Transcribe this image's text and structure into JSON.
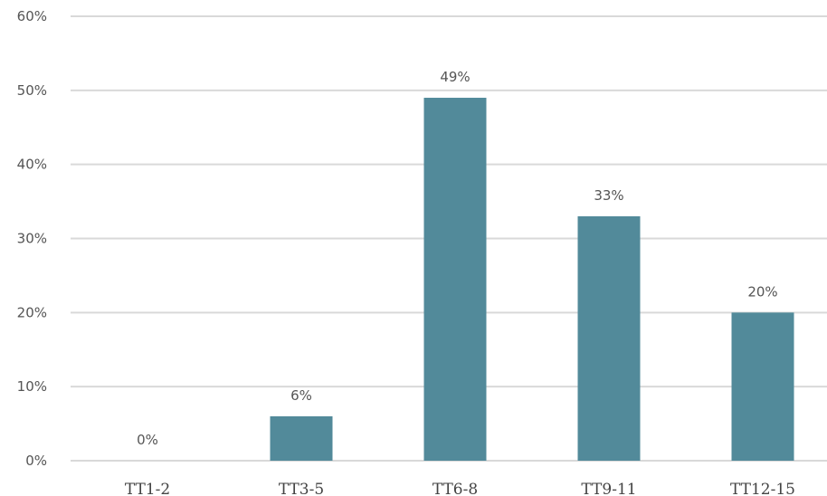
{
  "chart_data": {
    "type": "bar",
    "categories": [
      "TT1-2",
      "TT3-5",
      "TT6-8",
      "TT9-11",
      "TT12-15"
    ],
    "values": [
      0,
      6,
      49,
      33,
      20
    ],
    "data_labels": [
      "0%",
      "6%",
      "49%",
      "33%",
      "20%"
    ],
    "ylim": [
      0,
      60
    ],
    "yticks": [
      0,
      10,
      20,
      30,
      40,
      50,
      60
    ],
    "ytick_labels": [
      "0%",
      "10%",
      "20%",
      "30%",
      "40%",
      "50%",
      "60%"
    ],
    "grid": true,
    "bar_color": "#528A9A",
    "grid_color": "#D9D9D9"
  }
}
